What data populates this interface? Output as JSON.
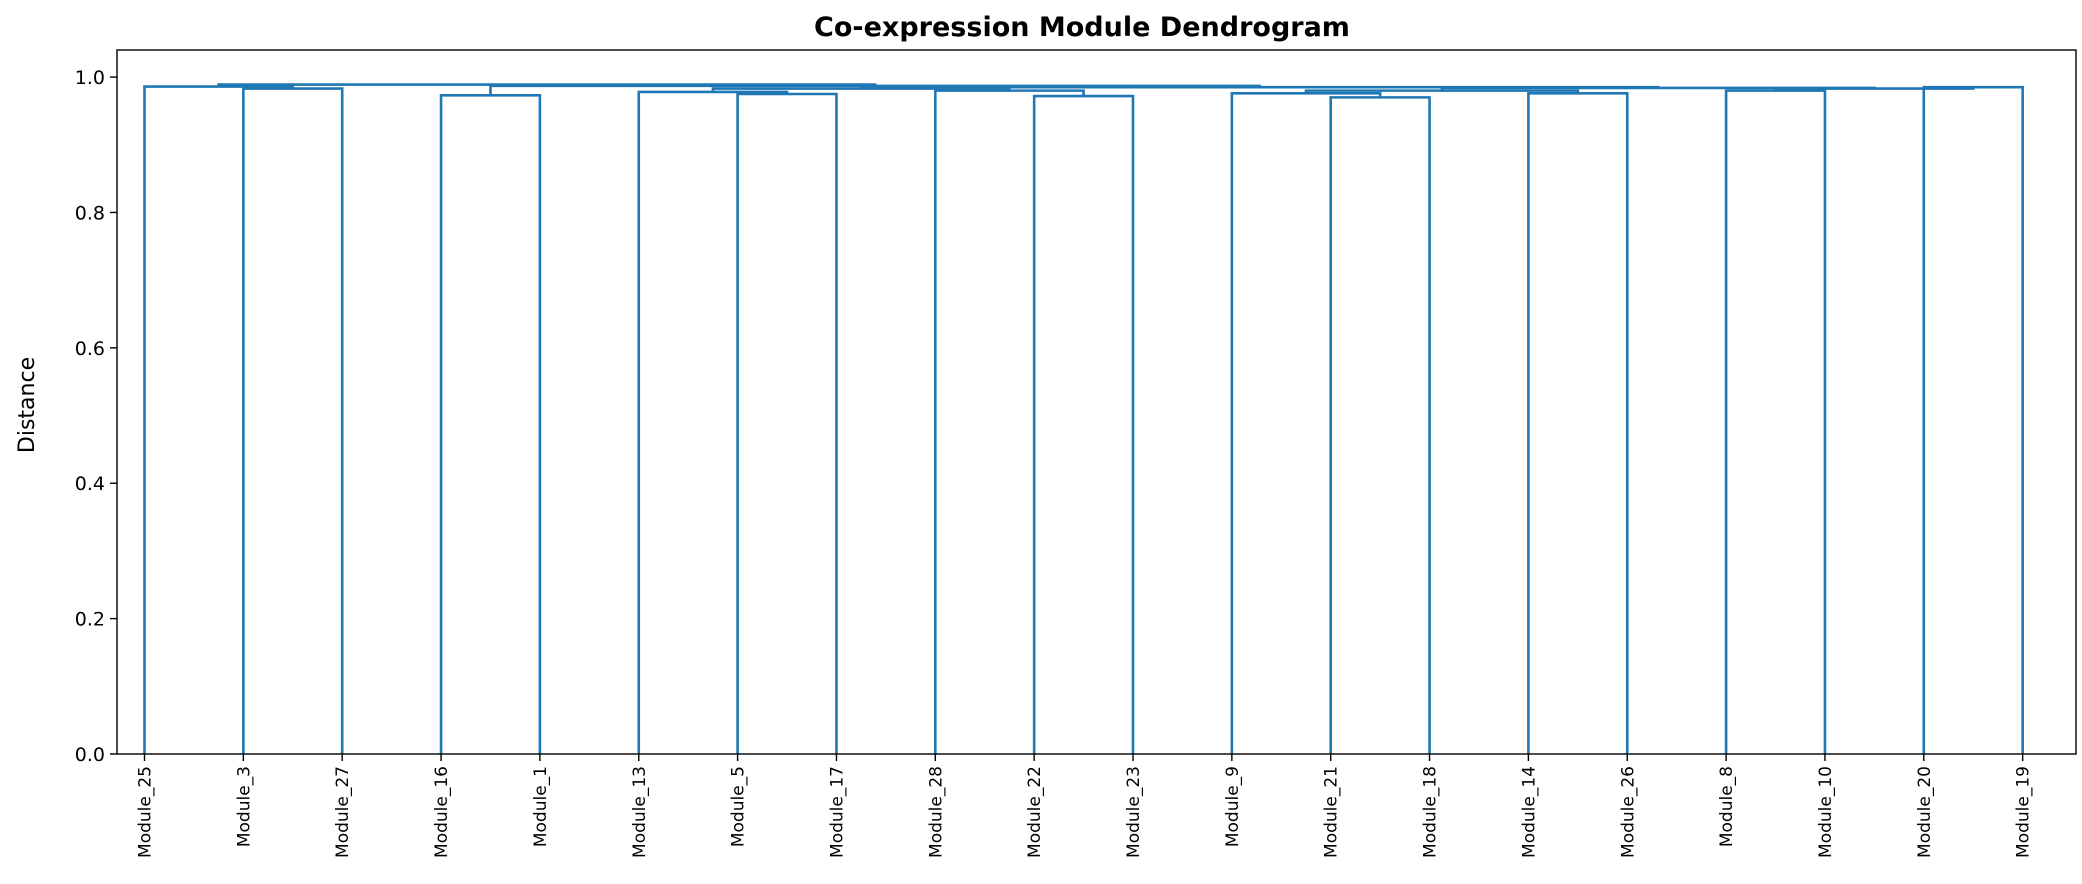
{
  "chart_data": {
    "type": "dendrogram",
    "title": "Co-expression Module Dendrogram",
    "xlabel": "",
    "ylabel": "Distance",
    "ylim": [
      0,
      1.04
    ],
    "yticks": [
      "0.0",
      "0.2",
      "0.4",
      "0.6",
      "0.8",
      "1.0"
    ],
    "ytick_values": [
      0.0,
      0.2,
      0.4,
      0.6,
      0.8,
      1.0
    ],
    "grid": false,
    "link_color": "#1f77b4",
    "leaves": [
      "Module_25",
      "Module_3",
      "Module_27",
      "Module_16",
      "Module_1",
      "Module_13",
      "Module_5",
      "Module_17",
      "Module_28",
      "Module_22",
      "Module_23",
      "Module_9",
      "Module_21",
      "Module_18",
      "Module_14",
      "Module_26",
      "Module_8",
      "Module_10",
      "Module_20",
      "Module_19"
    ],
    "merges": [
      {
        "left": "Module_3",
        "right": "Module_27",
        "height": 0.983
      },
      {
        "left": "Module_25",
        "right": "cluster_1",
        "height": 0.986
      },
      {
        "left": "Module_16",
        "right": "Module_1",
        "height": 0.973
      },
      {
        "left": "Module_5",
        "right": "Module_17",
        "height": 0.975
      },
      {
        "left": "Module_13",
        "right": "cluster_4",
        "height": 0.978
      },
      {
        "left": "Module_22",
        "right": "Module_23",
        "height": 0.972
      },
      {
        "left": "Module_28",
        "right": "cluster_6",
        "height": 0.98
      },
      {
        "left": "cluster_5",
        "right": "cluster_7",
        "height": 0.983
      },
      {
        "left": "Module_21",
        "right": "Module_18",
        "height": 0.97
      },
      {
        "left": "Module_9",
        "right": "cluster_9",
        "height": 0.976
      },
      {
        "left": "Module_14",
        "right": "Module_26",
        "height": 0.976
      },
      {
        "left": "cluster_10",
        "right": "cluster_11",
        "height": 0.98
      },
      {
        "left": "Module_8",
        "right": "Module_10",
        "height": 0.98
      },
      {
        "left": "Module_20",
        "right": "Module_19",
        "height": 0.985
      },
      {
        "left": "cluster_13",
        "right": "cluster_14",
        "height": 0.983
      },
      {
        "left": "cluster_12",
        "right": "cluster_15",
        "height": 0.984
      },
      {
        "left": "cluster_8",
        "right": "cluster_16",
        "height": 0.985
      },
      {
        "left": "cluster_3",
        "right": "cluster_17",
        "height": 0.987
      },
      {
        "left": "cluster_2",
        "right": "cluster_18",
        "height": 0.989
      }
    ]
  }
}
